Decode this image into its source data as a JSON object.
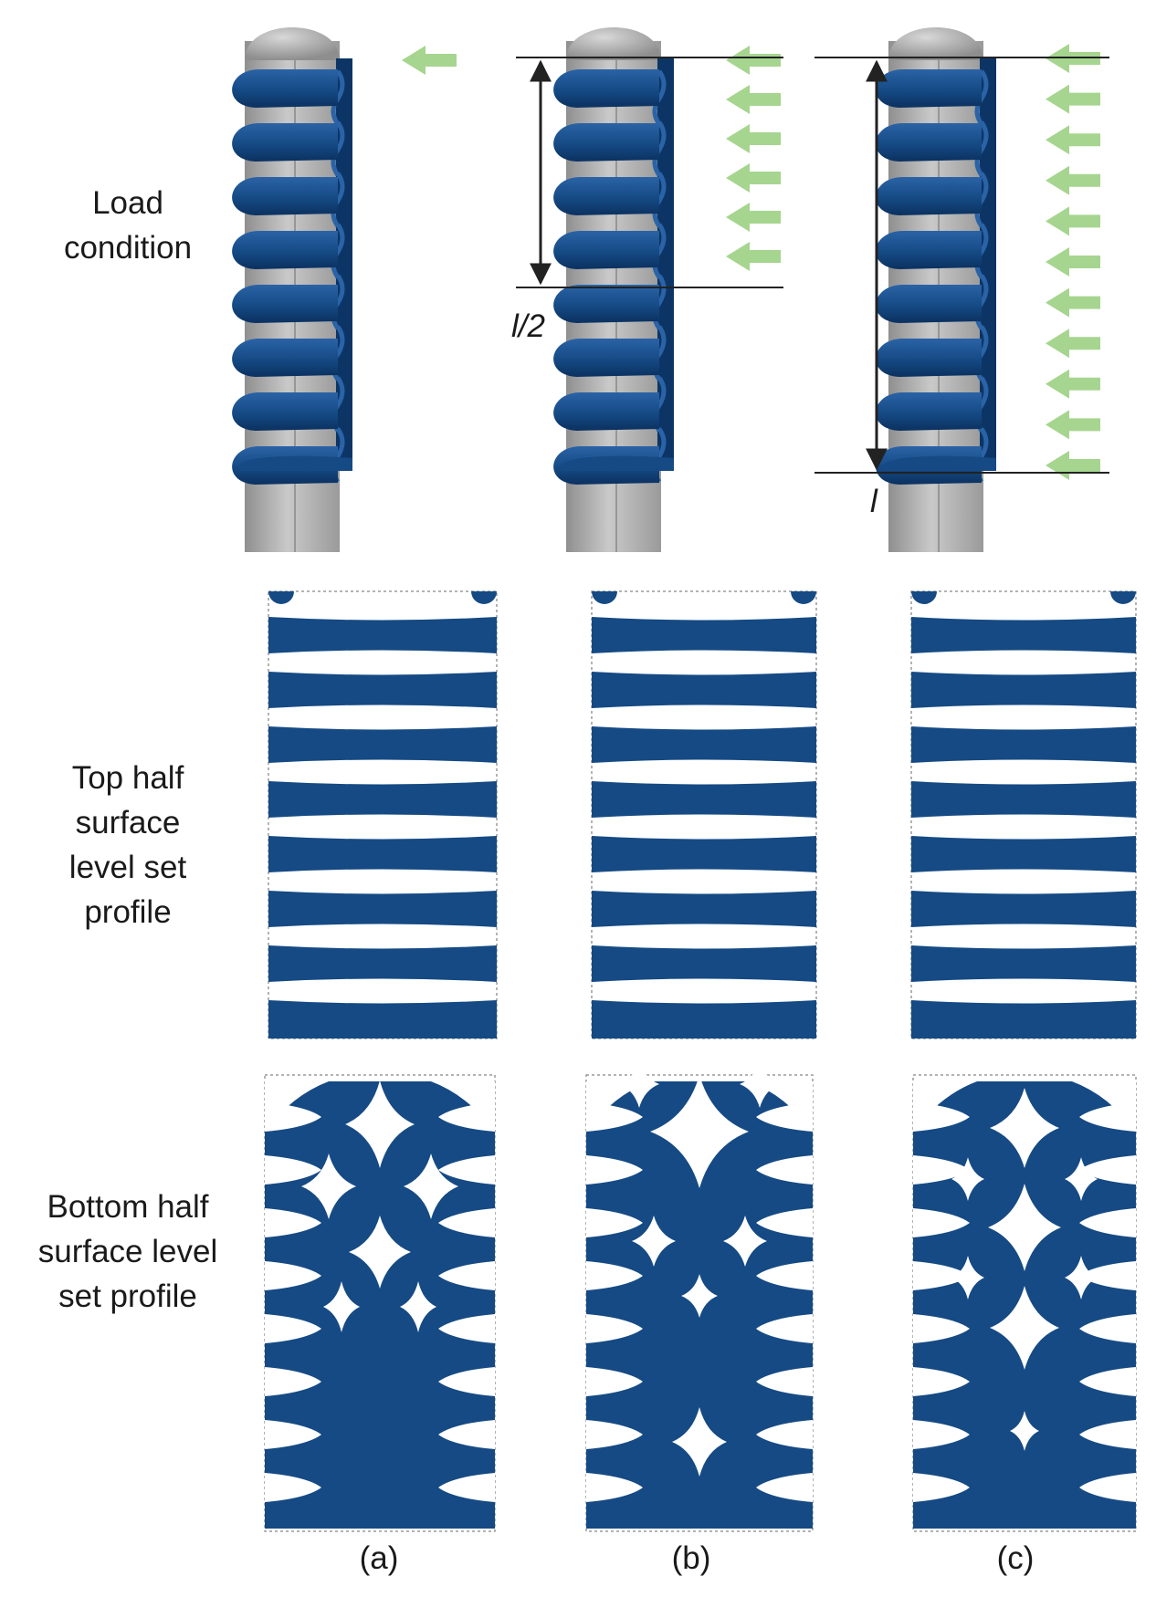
{
  "row_labels": {
    "load": [
      "Load",
      "condition"
    ],
    "top": [
      "Top half",
      "surface",
      "level set",
      "profile"
    ],
    "bottom": [
      "Bottom half",
      "surface level",
      "set profile"
    ]
  },
  "column_labels": [
    "(a)",
    "(b)",
    "(c)"
  ],
  "dimension_labels": {
    "half": "l/2",
    "full": "l"
  },
  "load_cases": [
    {
      "id": "a",
      "arrow_count": 1,
      "load_extent": "point at top"
    },
    {
      "id": "b",
      "arrow_count": 6,
      "load_extent": "top half (l/2)"
    },
    {
      "id": "c",
      "arrow_count": 11,
      "load_extent": "full length (l)"
    }
  ],
  "colors": {
    "structure": "#154a84",
    "structure_shadow": "#0c3566",
    "stem": "#b4b4b4",
    "load_arrow": "#a6d58f",
    "dimension_line": "#222222",
    "outline": "#9a9a9a"
  }
}
